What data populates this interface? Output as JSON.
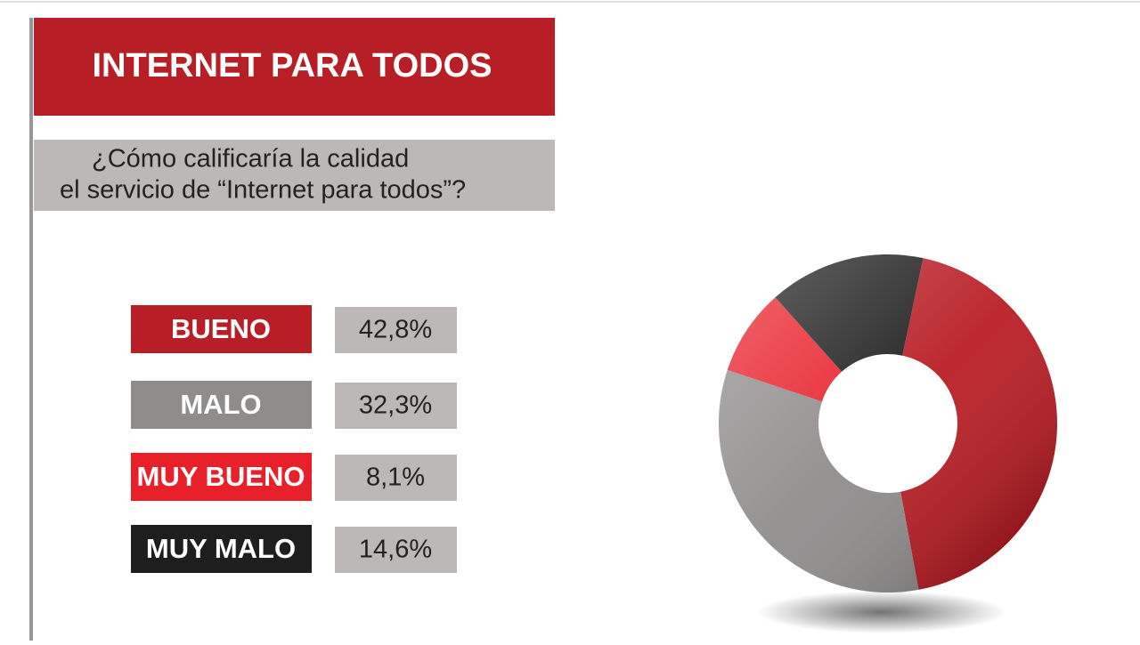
{
  "chart_data": {
    "type": "donut",
    "title": "INTERNET PARA TODOS",
    "subtitle": [
      "¿Cómo calificaría la calidad",
      "el servicio de “Internet para todos”?"
    ],
    "categories": [
      "BUENO",
      "MALO",
      "MUY BUENO",
      "MUY MALO"
    ],
    "values": [
      42.8,
      32.3,
      8.1,
      14.6
    ],
    "value_labels": [
      "42,8%",
      "32,3%",
      "8,1%",
      "14,6%"
    ],
    "colors": [
      "#b81e25",
      "#8f8c8c",
      "#e8202a",
      "#1e1e1e"
    ]
  }
}
